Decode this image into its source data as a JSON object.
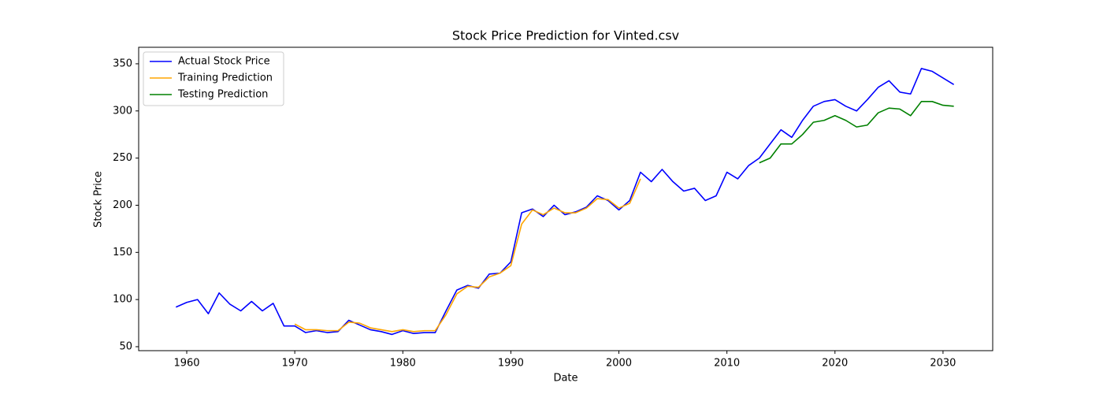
{
  "chart_data": {
    "type": "line",
    "title": "Stock Price Prediction for Vinted.csv",
    "x_label": "Date",
    "y_label": "Stock Price",
    "xlim": [
      1955.55,
      2034.6
    ],
    "xticks": [
      1960,
      1970,
      1980,
      1990,
      2000,
      2010,
      2020,
      2030
    ],
    "ylim": [
      45.8,
      367.5
    ],
    "yticks": [
      50,
      100,
      150,
      200,
      250,
      300,
      350
    ],
    "legend": "upper left",
    "series": [
      {
        "name": "Actual Stock Price",
        "color": "#0000ff",
        "x": [
          1959,
          1960,
          1961,
          1962,
          1963,
          1964,
          1965,
          1966,
          1967,
          1968,
          1969,
          1970,
          1971,
          1972,
          1973,
          1974,
          1975,
          1976,
          1977,
          1978,
          1979,
          1980,
          1981,
          1982,
          1983,
          1984,
          1985,
          1986,
          1987,
          1988,
          1989,
          1990,
          1991,
          1992,
          1993,
          1994,
          1995,
          1996,
          1997,
          1998,
          1999,
          2000,
          2001,
          2002,
          2003,
          2004,
          2005,
          2006,
          2007,
          2008,
          2009,
          2010,
          2011,
          2012,
          2013,
          2014,
          2015,
          2016,
          2017,
          2018,
          2019,
          2020,
          2021,
          2022,
          2023,
          2024,
          2025,
          2026,
          2027,
          2028,
          2029,
          2030,
          2031
        ],
        "values": [
          92,
          97,
          100,
          85,
          107,
          95,
          88,
          98,
          88,
          96,
          72,
          72,
          65,
          67,
          65,
          66,
          78,
          73,
          68,
          66,
          63,
          67,
          64,
          65,
          65,
          88,
          110,
          115,
          112,
          127,
          128,
          140,
          192,
          196,
          188,
          200,
          190,
          193,
          198,
          210,
          205,
          195,
          205,
          235,
          225,
          238,
          225,
          215,
          218,
          205,
          210,
          235,
          228,
          242,
          250,
          265,
          280,
          272,
          290,
          305,
          310,
          312,
          305,
          300,
          312,
          325,
          332,
          320,
          318,
          345,
          342,
          335,
          328
        ]
      },
      {
        "name": "Training Prediction",
        "color": "#ffa500",
        "x": [
          1970,
          1971,
          1972,
          1973,
          1974,
          1975,
          1976,
          1977,
          1978,
          1979,
          1980,
          1981,
          1982,
          1983,
          1984,
          1985,
          1986,
          1987,
          1988,
          1989,
          1990,
          1991,
          1992,
          1993,
          1994,
          1995,
          1996,
          1997,
          1998,
          1999,
          2000,
          2001,
          2002
        ],
        "values": [
          74,
          68,
          68,
          67,
          67,
          76,
          75,
          70,
          68,
          66,
          68,
          66,
          67,
          67,
          84,
          106,
          114,
          113,
          124,
          128,
          136,
          180,
          195,
          190,
          197,
          192,
          192,
          197,
          207,
          206,
          197,
          202,
          228
        ]
      },
      {
        "name": "Testing Prediction",
        "color": "#008000",
        "x": [
          2013,
          2014,
          2015,
          2016,
          2017,
          2018,
          2019,
          2020,
          2021,
          2022,
          2023,
          2024,
          2025,
          2026,
          2027,
          2028,
          2029,
          2030,
          2031
        ],
        "values": [
          245,
          250,
          265,
          265,
          275,
          288,
          290,
          295,
          290,
          283,
          285,
          298,
          303,
          302,
          295,
          310,
          310,
          306,
          305
        ]
      }
    ]
  }
}
